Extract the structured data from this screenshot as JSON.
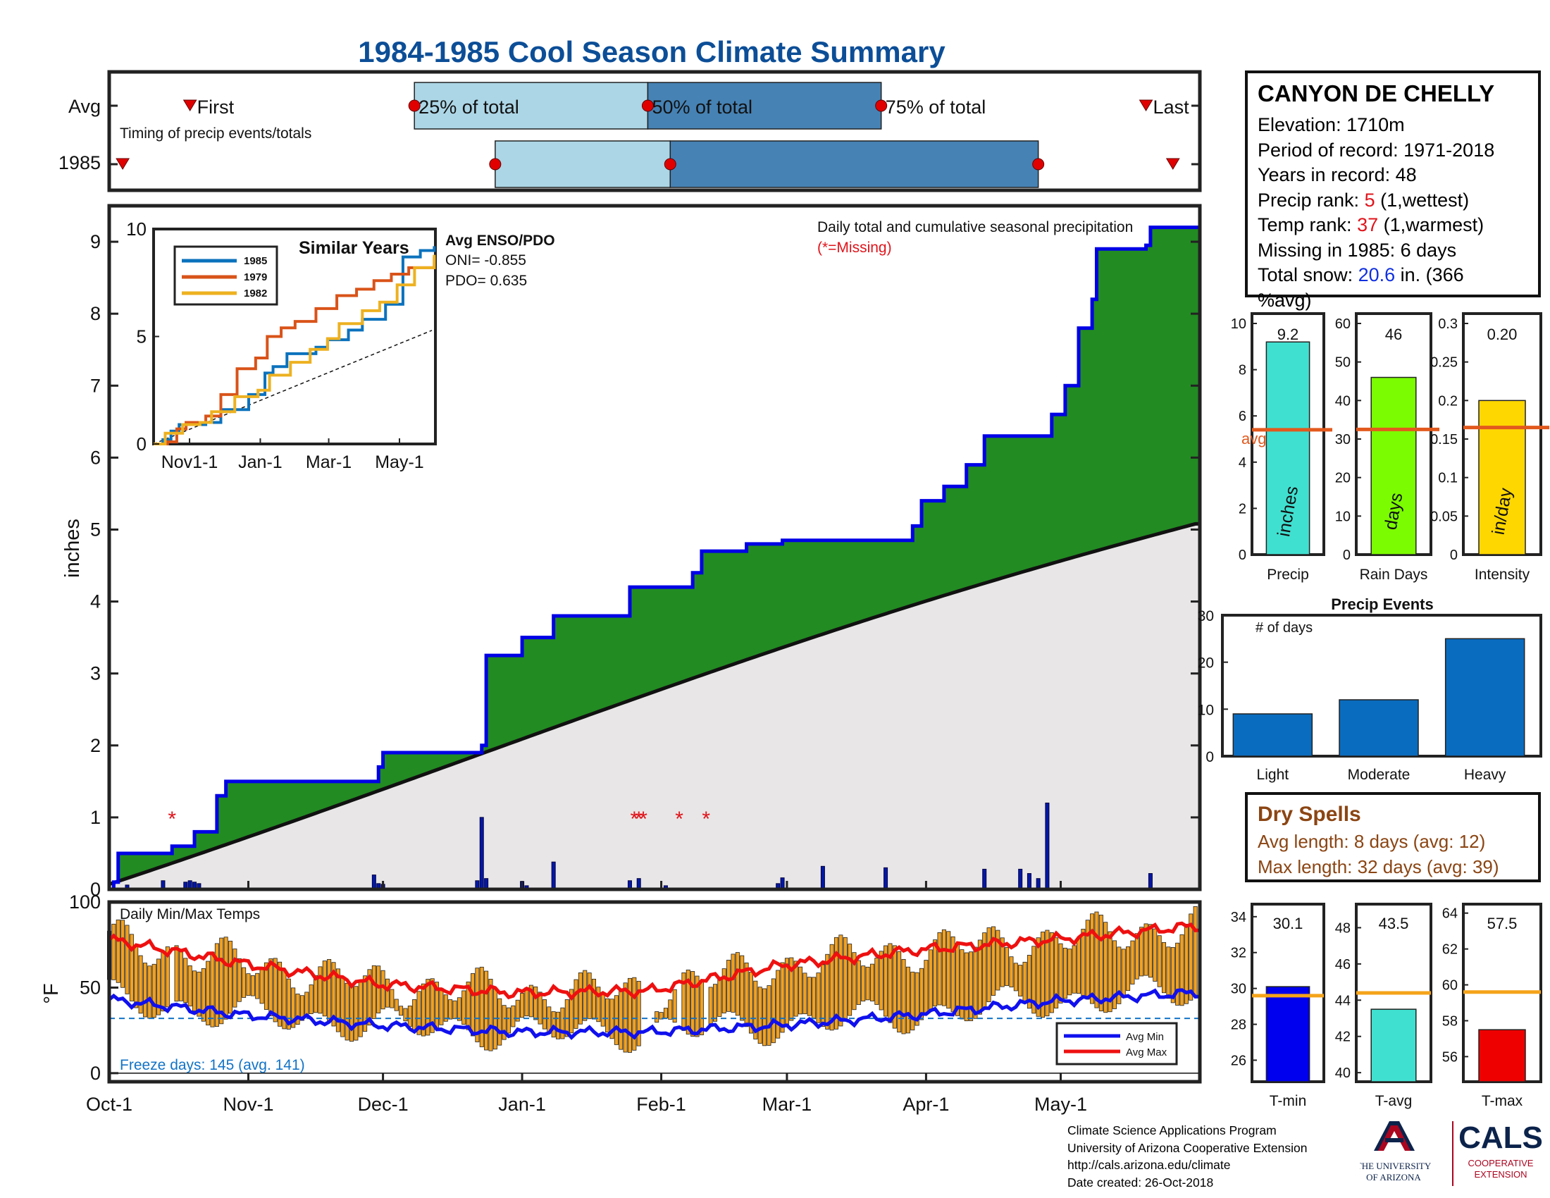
{
  "title": "1984-1985 Cool Season Climate Summary",
  "colors": {
    "title": "#0c4e97",
    "green": "#228b22",
    "cum_line": "#0000e6",
    "avg_fill": "#e8e6e6",
    "light_blue": "#acd6e6",
    "steel": "#4682b4",
    "orange": "#e2591d",
    "gold": "#f4c430",
    "temp_bar": "#f2a11f",
    "min_line": "#1010ee",
    "max_line": "#ee1010",
    "freeze": "#1273c6",
    "cyan": "#40e0d0",
    "lime": "#7cfc00",
    "yellow": "#ffd700",
    "events": "#0a6cbf",
    "dry": "#8b4513"
  },
  "station": {
    "name": "CANYON DE CHELLY",
    "elevation": "Elevation: 1710m",
    "period": "Period of record: 1971-2018",
    "years": "Years in record: 48",
    "precip_rank_label": "Precip rank: ",
    "precip_rank": "5",
    "precip_rank_note": " (1,wettest)",
    "temp_rank_label": "Temp rank: ",
    "temp_rank": "37",
    "temp_rank_note": " (1,warmest)",
    "missing": "Missing in 1985: 6 days",
    "snow_label": "Total snow: ",
    "snow_value": "20.6",
    "snow_note": " in. (366",
    "snow_note2": "%avg)"
  },
  "dry_spells": {
    "title": "Dry Spells",
    "avg": "Avg length: 8 days (avg: 12)",
    "max": "Max length: 32 days (avg: 39)"
  },
  "credits": [
    "Climate Science Applications Program",
    "University of Arizona Cooperative Extension",
    "http://cals.arizona.edu/climate",
    " Date created: 26-Oct-2018"
  ],
  "logo": {
    "ua_line1": "THE UNIVERSITY",
    "ua_line2": "OF ARIZONA",
    "cals": "CALS",
    "cals_line1": "COOPERATIVE",
    "cals_line2": "EXTENSION"
  },
  "chart_data": [
    {
      "id": "timing",
      "type": "bar",
      "annotation": "Timing of precip events/totals",
      "rows": [
        "Avg",
        "1985"
      ],
      "avg": {
        "first": "Oct-19",
        "q25": "Dec-08",
        "q50": "Jan-29",
        "q75": "Mar-22",
        "last": "May-20"
      },
      "y1985": {
        "first": "Oct-04",
        "q25": "Dec-26",
        "q50": "Feb-03",
        "q75": "Apr-26",
        "last": "May-26"
      },
      "labels": {
        "first": "First",
        "q25": "25% of total",
        "q50": "50% of total",
        "q75": "75% of total",
        "last": "Last"
      }
    },
    {
      "id": "precip",
      "type": "area",
      "ylabel": "inches",
      "ylim": [
        0,
        9.5
      ],
      "yticks": [
        0,
        1,
        2,
        3,
        4,
        5,
        6,
        7,
        8,
        9
      ],
      "xticks": [
        "Oct-1",
        "Nov-1",
        "Dec-1",
        "Jan-1",
        "Feb-1",
        "Mar-1",
        "Apr-1",
        "May-1"
      ],
      "annotation": "Daily total and cumulative seasonal precipitation",
      "missing_note": "(*=Missing)",
      "season_start": "1984-10-01",
      "season_end": "1985-05-31",
      "cumulative_steps": [
        [
          "1984-10-01",
          0.0
        ],
        [
          "1984-10-02",
          0.1
        ],
        [
          "1984-10-03",
          0.5
        ],
        [
          "1984-10-15",
          0.6
        ],
        [
          "1984-10-20",
          0.8
        ],
        [
          "1984-10-25",
          1.3
        ],
        [
          "1984-10-27",
          1.5
        ],
        [
          "1984-11-30",
          1.7
        ],
        [
          "1984-12-01",
          1.9
        ],
        [
          "1984-12-23",
          2.0
        ],
        [
          "1984-12-24",
          3.25
        ],
        [
          "1985-01-01",
          3.5
        ],
        [
          "1985-01-08",
          3.8
        ],
        [
          "1985-01-25",
          4.2
        ],
        [
          "1985-02-08",
          4.4
        ],
        [
          "1985-02-10",
          4.7
        ],
        [
          "1985-02-20",
          4.8
        ],
        [
          "1985-02-28",
          4.85
        ],
        [
          "1985-03-29",
          5.05
        ],
        [
          "1985-03-31",
          5.4
        ],
        [
          "1985-04-05",
          5.6
        ],
        [
          "1985-04-10",
          5.9
        ],
        [
          "1985-04-14",
          6.3
        ],
        [
          "1985-04-29",
          6.6
        ],
        [
          "1985-05-02",
          7.0
        ],
        [
          "1985-05-05",
          7.8
        ],
        [
          "1985-05-08",
          8.2
        ],
        [
          "1985-05-09",
          8.9
        ],
        [
          "1985-05-20",
          8.95
        ],
        [
          "1985-05-21",
          9.2
        ]
      ],
      "average_final": 5.35,
      "daily_bars": [
        [
          "1984-10-02",
          0.02
        ],
        [
          "1984-10-05",
          0.06
        ],
        [
          "1984-10-13",
          0.12
        ],
        [
          "1984-10-18",
          0.1
        ],
        [
          "1984-10-19",
          0.12
        ],
        [
          "1984-10-20",
          0.1
        ],
        [
          "1984-10-21",
          0.08
        ],
        [
          "1984-11-29",
          0.2
        ],
        [
          "1984-11-30",
          0.08
        ],
        [
          "1984-12-01",
          0.07
        ],
        [
          "1984-12-22",
          0.12
        ],
        [
          "1984-12-23",
          1.0
        ],
        [
          "1984-12-24",
          0.15
        ],
        [
          "1985-01-01",
          0.11
        ],
        [
          "1985-01-02",
          0.05
        ],
        [
          "1985-01-08",
          0.38
        ],
        [
          "1985-01-25",
          0.12
        ],
        [
          "1985-01-27",
          0.15
        ],
        [
          "1985-02-02",
          0.05
        ],
        [
          "1985-02-27",
          0.08
        ],
        [
          "1985-02-28",
          0.16
        ],
        [
          "1985-03-09",
          0.32
        ],
        [
          "1985-03-23",
          0.3
        ],
        [
          "1985-04-14",
          0.28
        ],
        [
          "1985-04-22",
          0.28
        ],
        [
          "1985-04-24",
          0.22
        ],
        [
          "1985-04-26",
          0.15
        ],
        [
          "1985-04-28",
          1.2
        ],
        [
          "1985-05-21",
          0.22
        ]
      ],
      "missing_days": [
        "1984-10-15",
        "1985-01-26",
        "1985-01-27",
        "1985-01-28",
        "1985-02-05",
        "1985-02-11"
      ],
      "series": [
        {
          "name": "1985 cumulative",
          "final": 9.2
        },
        {
          "name": "average cumulative",
          "final": 5.35
        }
      ]
    },
    {
      "id": "similar",
      "type": "line",
      "title": "Similar Years",
      "ylim": [
        0,
        10
      ],
      "yticks": [
        0,
        5,
        10
      ],
      "xticks": [
        "Nov1-1",
        "Jan-1",
        "Mar-1",
        "May-1"
      ],
      "enso_title": "Avg ENSO/PDO",
      "oni": "ONI= -0.855",
      "pdo": "PDO= 0.635",
      "series": [
        {
          "name": "1985",
          "final": 9.2
        },
        {
          "name": "1979",
          "final": 8.7
        },
        {
          "name": "1982",
          "final": 8.8
        }
      ]
    },
    {
      "id": "totals",
      "type": "bar",
      "avg_label": "avg",
      "panels": [
        {
          "category": "Precip",
          "value": 9.2,
          "label": "9.2",
          "avg": 5.4,
          "unit": "inches",
          "ylim": [
            0,
            10
          ],
          "yticks": [
            0,
            2,
            4,
            6,
            8,
            10
          ]
        },
        {
          "category": "Rain Days",
          "value": 46,
          "label": "46",
          "avg": 32.5,
          "unit": "days",
          "ylim": [
            0,
            60
          ],
          "yticks": [
            0,
            10,
            20,
            30,
            40,
            50,
            60
          ]
        },
        {
          "category": "Intensity",
          "value": 0.2,
          "label": "0.20",
          "avg": 0.165,
          "unit": "in/day",
          "ylim": [
            0,
            0.3
          ],
          "yticks": [
            "0",
            "0.05",
            "0.1",
            "0.15",
            "0.2",
            "0.25",
            "0.3"
          ]
        }
      ]
    },
    {
      "id": "events",
      "type": "bar",
      "title": "Precip Events",
      "ylabel_note": "# of days",
      "categories": [
        "Light",
        "Moderate",
        "Heavy"
      ],
      "values": [
        9,
        12,
        25
      ],
      "ylim": [
        0,
        30
      ],
      "yticks": [
        0,
        10,
        20,
        30
      ]
    },
    {
      "id": "temps",
      "type": "bar",
      "annotation": "Daily Min/Max Temps",
      "ylabel": "°F",
      "ylim": [
        -5,
        100
      ],
      "yticks": [
        0,
        50,
        100
      ],
      "freeze_line": 32,
      "freeze_text": "Freeze days: 145 (avg. 141)",
      "legend": [
        "Avg Min",
        "Avg Max"
      ],
      "avg_max_knots": [
        [
          0,
          78
        ],
        [
          30,
          64
        ],
        [
          60,
          52
        ],
        [
          90,
          47
        ],
        [
          120,
          48
        ],
        [
          150,
          63
        ],
        [
          180,
          72
        ],
        [
          210,
          78
        ],
        [
          242,
          86
        ]
      ],
      "avg_min_knots": [
        [
          0,
          43
        ],
        [
          30,
          34
        ],
        [
          60,
          28
        ],
        [
          90,
          24
        ],
        [
          120,
          24
        ],
        [
          150,
          28
        ],
        [
          180,
          34
        ],
        [
          210,
          42
        ],
        [
          242,
          47
        ]
      ]
    },
    {
      "id": "temp_summary",
      "type": "bar",
      "panels": [
        {
          "category": "T-min",
          "value": 30.1,
          "label": "30.1",
          "avg": 29.6,
          "ylim": [
            24.8,
            34.7
          ],
          "yticks": [
            26,
            28,
            30,
            32,
            34
          ]
        },
        {
          "category": "T-avg",
          "value": 43.5,
          "label": "43.5",
          "avg": 44.4,
          "ylim": [
            39.5,
            49.3
          ],
          "yticks": [
            40,
            42,
            44,
            46,
            48
          ]
        },
        {
          "category": "T-max",
          "value": 57.5,
          "label": "57.5",
          "avg": 59.6,
          "ylim": [
            54.6,
            64.5
          ],
          "yticks": [
            56,
            58,
            60,
            62,
            64
          ]
        }
      ]
    }
  ]
}
